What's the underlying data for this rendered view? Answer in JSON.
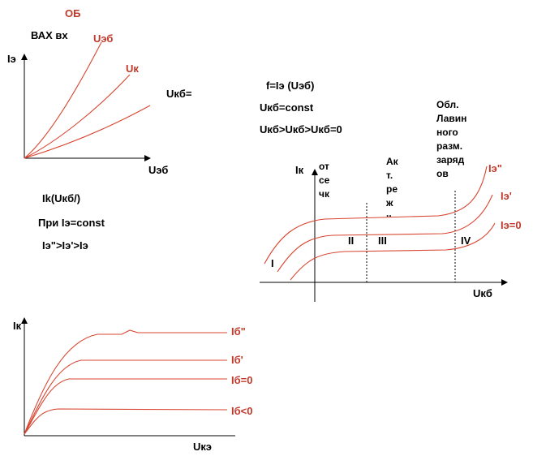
{
  "title_ob": "ОБ",
  "input_vax": {
    "title": "ВАХ вх",
    "y_axis": "Iэ",
    "x_axis": "Uэб",
    "curve_labels": [
      "Uэб",
      "Uк",
      "Uкб="
    ]
  },
  "equations": {
    "line1": "f=Iэ (Uэб)",
    "line2": "Uкб=const",
    "line3": "Uкб>Uкб>Uкб=0"
  },
  "output_ob": {
    "y_axis": "Iк",
    "x_axis": "Uкб",
    "region_cutoff": [
      "от",
      "се",
      "чк"
    ],
    "region_active": [
      "Ак",
      "т.",
      "ре",
      "ж",
      ".."
    ],
    "region_breakdown": [
      "Обл.",
      "Лавин",
      "ного",
      "разм.",
      "заряд",
      "ов"
    ],
    "roman": [
      "I",
      "II",
      "III",
      "IV"
    ],
    "curve_labels": [
      "Iэ\"",
      "Iэ'",
      "Iэ=0"
    ],
    "text_lines": [
      "Ik(Uкб/)",
      "При Iэ=const",
      "Iэ\">Iэ'>Iэ"
    ]
  },
  "output_oe": {
    "y_axis": "Iк",
    "x_axis": "Uкэ",
    "curve_labels": [
      "Iб\"",
      "Iб'",
      "Iб=0",
      "Iб<0"
    ]
  },
  "colors": {
    "curve": "#d8442f",
    "axis": "#000000",
    "label_red": "#c0392b"
  }
}
